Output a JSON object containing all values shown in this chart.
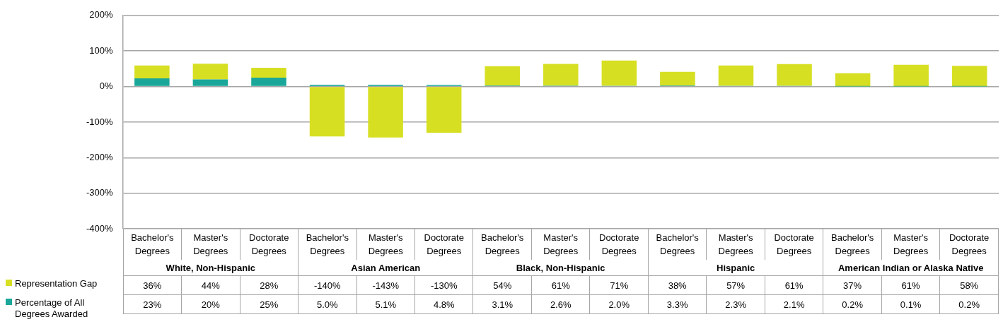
{
  "chart_data": {
    "type": "bar",
    "stacked": true,
    "categories": [
      "Bachelor's Degrees",
      "Master's Degrees",
      "Doctorate Degrees",
      "Bachelor's Degrees",
      "Master's Degrees",
      "Doctorate Degrees",
      "Bachelor's Degrees",
      "Master's Degrees",
      "Doctorate Degrees",
      "Bachelor's Degrees",
      "Master's Degrees",
      "Doctorate Degrees",
      "Bachelor's Degrees",
      "Master's Degrees",
      "Doctorate Degrees"
    ],
    "annotations": [
      "White, Non-Hispanic",
      "Asian American",
      "Black, Non-Hispanic",
      "Hispanic",
      "American Indian or Alaska Native"
    ],
    "series": [
      {
        "name": "Percentage of All Degrees Awarded",
        "color": "#1aa79a",
        "values": [
          23,
          20,
          25,
          5.0,
          5.1,
          4.8,
          3.1,
          2.6,
          2.0,
          3.3,
          2.3,
          2.1,
          0.2,
          0.1,
          0.2
        ],
        "value_labels": [
          "23%",
          "20%",
          "25%",
          "5.0%",
          "5.1%",
          "4.8%",
          "3.1%",
          "2.6%",
          "2.0%",
          "3.3%",
          "2.3%",
          "2.1%",
          "0.2%",
          "0.1%",
          "0.2%"
        ]
      },
      {
        "name": "Representation Gap",
        "color": "#d7df23",
        "values": [
          36,
          44,
          28,
          -140,
          -143,
          -130,
          54,
          61,
          71,
          38,
          57,
          61,
          37,
          61,
          58
        ],
        "value_labels": [
          "36%",
          "44%",
          "28%",
          "-140%",
          "-143%",
          "-130%",
          "54%",
          "61%",
          "71%",
          "38%",
          "57%",
          "61%",
          "37%",
          "61%",
          "58%"
        ]
      }
    ],
    "ylim": [
      -400,
      200
    ],
    "yticks": [
      {
        "value": -400,
        "label": "-400%"
      },
      {
        "value": -300,
        "label": "-300%"
      },
      {
        "value": -200,
        "label": "-200%"
      },
      {
        "value": -100,
        "label": "-100%"
      },
      {
        "value": 0,
        "label": "0%"
      },
      {
        "value": 100,
        "label": "100%"
      },
      {
        "value": 200,
        "label": "200%"
      }
    ],
    "grid": "y",
    "legend": "bottom left"
  }
}
